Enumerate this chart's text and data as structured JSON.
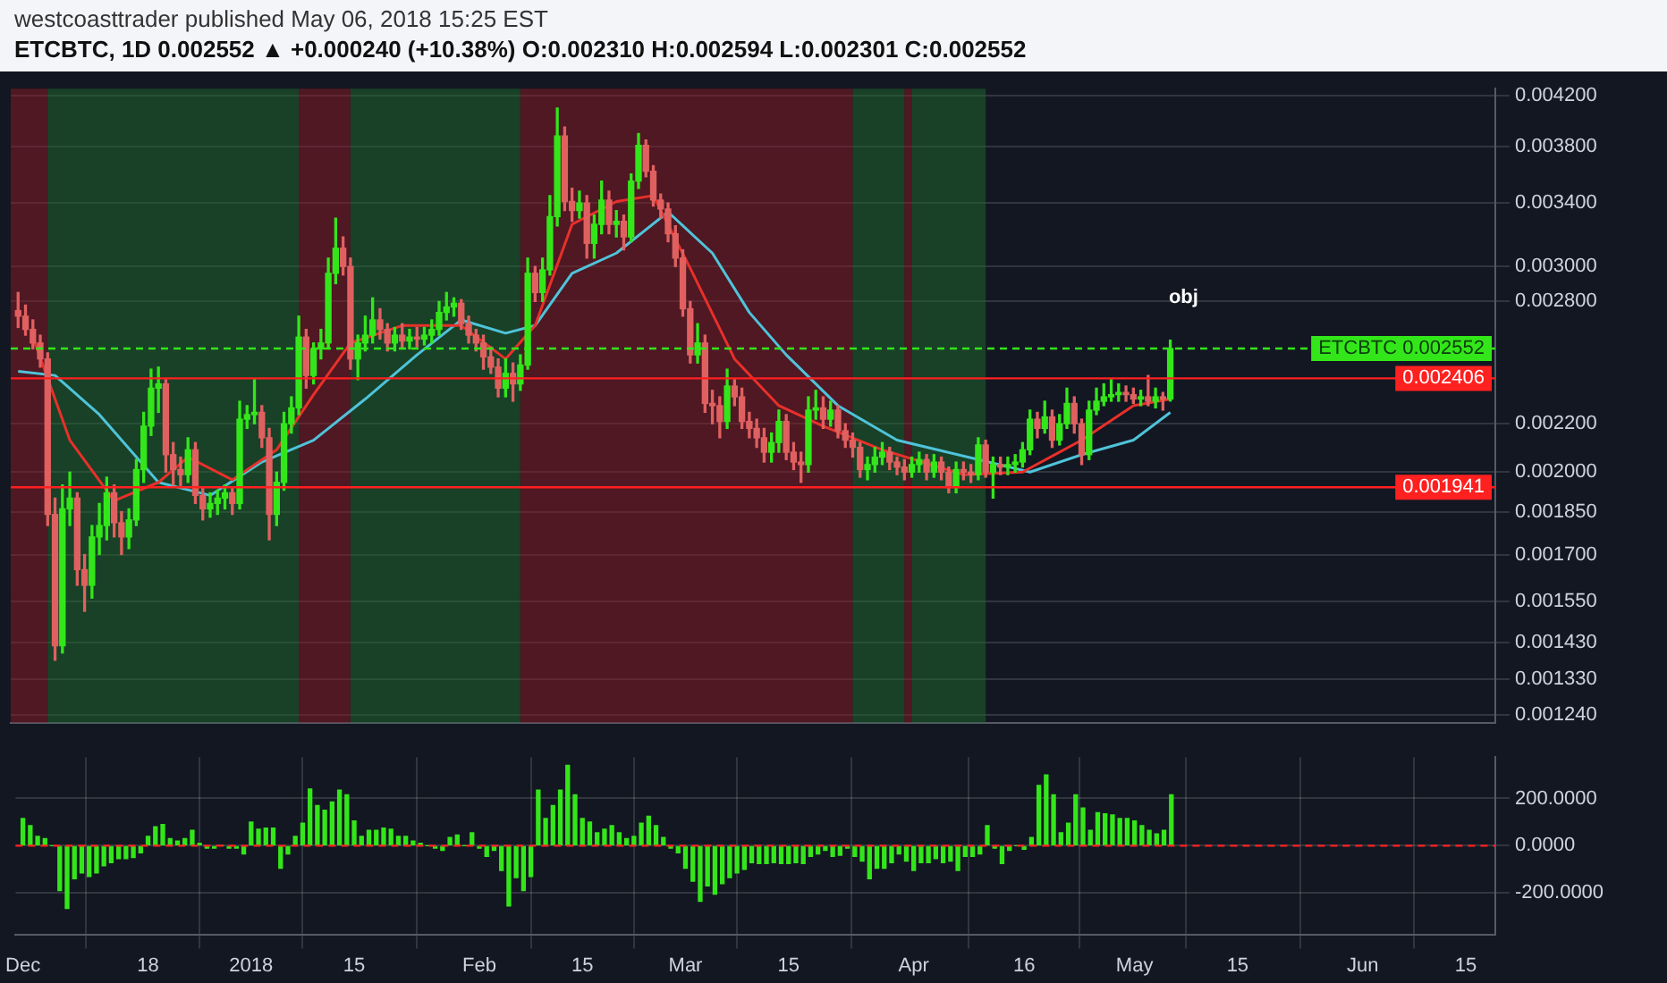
{
  "chart_data": [
    {
      "type": "candlestick",
      "tick_labels": "y",
      "title": "westcoasttrader published May 06, 2018 15:25 EST",
      "subtitle": "ETCBTC, 1D 0.002552 ▲ +0.000240 (+10.38%) O:0.002310 H:0.002594 L:0.002301 C:0.002552",
      "x": [
        "2017-12-01",
        "2017-12-02",
        "2017-12-03",
        "2017-12-04",
        "2017-12-05",
        "2017-12-06",
        "2017-12-07",
        "2017-12-08",
        "2017-12-09",
        "2017-12-10",
        "2017-12-11",
        "2017-12-12",
        "2017-12-13",
        "2017-12-14",
        "2017-12-15",
        "2017-12-16",
        "2017-12-17",
        "2017-12-18",
        "2017-12-19",
        "2017-12-20",
        "2017-12-21",
        "2017-12-22",
        "2017-12-23",
        "2017-12-24",
        "2017-12-25",
        "2017-12-26",
        "2017-12-27",
        "2017-12-28",
        "2017-12-29",
        "2017-12-30",
        "2017-12-31",
        "2018-01-01",
        "2018-01-02",
        "2018-01-03",
        "2018-01-04",
        "2018-01-05",
        "2018-01-06",
        "2018-01-07",
        "2018-01-08",
        "2018-01-09",
        "2018-01-10",
        "2018-01-11",
        "2018-01-12",
        "2018-01-13",
        "2018-01-14",
        "2018-01-15",
        "2018-01-16",
        "2018-01-17",
        "2018-01-18",
        "2018-01-19",
        "2018-01-20",
        "2018-01-21",
        "2018-01-22",
        "2018-01-23",
        "2018-01-24",
        "2018-01-25",
        "2018-01-26",
        "2018-01-27",
        "2018-01-28",
        "2018-01-29",
        "2018-01-30",
        "2018-01-31",
        "2018-02-01",
        "2018-02-02",
        "2018-02-03",
        "2018-02-04",
        "2018-02-05",
        "2018-02-06",
        "2018-02-07",
        "2018-02-08",
        "2018-02-09",
        "2018-02-10",
        "2018-02-11",
        "2018-02-12",
        "2018-02-13",
        "2018-02-14",
        "2018-02-15",
        "2018-02-16",
        "2018-02-17",
        "2018-02-18",
        "2018-02-19",
        "2018-02-20",
        "2018-02-21",
        "2018-02-22",
        "2018-02-23",
        "2018-02-24",
        "2018-02-25",
        "2018-02-26",
        "2018-02-27",
        "2018-02-28",
        "2018-03-01",
        "2018-03-02",
        "2018-03-03",
        "2018-03-04",
        "2018-03-05",
        "2018-03-06",
        "2018-03-07",
        "2018-03-08",
        "2018-03-09",
        "2018-03-10",
        "2018-03-11",
        "2018-03-12",
        "2018-03-13",
        "2018-03-14",
        "2018-03-15",
        "2018-03-16",
        "2018-03-17",
        "2018-03-18",
        "2018-03-19",
        "2018-03-20",
        "2018-03-21",
        "2018-03-22",
        "2018-03-23",
        "2018-03-24",
        "2018-03-25",
        "2018-03-26",
        "2018-03-27",
        "2018-03-28",
        "2018-03-29",
        "2018-03-30",
        "2018-03-31",
        "2018-04-01",
        "2018-04-02",
        "2018-04-03",
        "2018-04-04",
        "2018-04-05",
        "2018-04-06",
        "2018-04-07",
        "2018-04-08",
        "2018-04-09",
        "2018-04-10",
        "2018-04-11",
        "2018-04-12",
        "2018-04-13",
        "2018-04-14",
        "2018-04-15",
        "2018-04-16",
        "2018-04-17",
        "2018-04-18",
        "2018-04-19",
        "2018-04-20",
        "2018-04-21",
        "2018-04-22",
        "2018-04-23",
        "2018-04-24",
        "2018-04-25",
        "2018-04-26",
        "2018-04-27",
        "2018-04-28",
        "2018-04-29",
        "2018-04-30",
        "2018-05-01",
        "2018-05-02",
        "2018-05-03",
        "2018-05-04",
        "2018-05-05",
        "2018-05-06"
      ],
      "ohlc": [
        [
          0.00275,
          0.00285,
          0.00266,
          0.00272
        ],
        [
          0.00272,
          0.00278,
          0.00262,
          0.00265
        ],
        [
          0.00265,
          0.0027,
          0.00255,
          0.00258
        ],
        [
          0.00258,
          0.00262,
          0.00246,
          0.0025
        ],
        [
          0.0025,
          0.00253,
          0.0018,
          0.00184
        ],
        [
          0.00184,
          0.0019,
          0.00138,
          0.00142
        ],
        [
          0.00142,
          0.00195,
          0.0014,
          0.00186
        ],
        [
          0.00186,
          0.002,
          0.0018,
          0.0019
        ],
        [
          0.0019,
          0.00192,
          0.0016,
          0.00165
        ],
        [
          0.00165,
          0.0017,
          0.00152,
          0.0016
        ],
        [
          0.0016,
          0.0018,
          0.00156,
          0.00176
        ],
        [
          0.00176,
          0.00188,
          0.0017,
          0.0018
        ],
        [
          0.0018,
          0.00198,
          0.00175,
          0.00192
        ],
        [
          0.00192,
          0.00195,
          0.00176,
          0.00181
        ],
        [
          0.00181,
          0.00185,
          0.0017,
          0.00176
        ],
        [
          0.00176,
          0.00186,
          0.00172,
          0.00182
        ],
        [
          0.00182,
          0.00205,
          0.0018,
          0.00201
        ],
        [
          0.00201,
          0.00225,
          0.00196,
          0.00219
        ],
        [
          0.00219,
          0.00245,
          0.00215,
          0.00236
        ],
        [
          0.00236,
          0.00246,
          0.00225,
          0.00238
        ],
        [
          0.00238,
          0.0024,
          0.002,
          0.00207
        ],
        [
          0.00207,
          0.00212,
          0.00195,
          0.00201
        ],
        [
          0.00201,
          0.00206,
          0.00194,
          0.00199
        ],
        [
          0.00199,
          0.00214,
          0.00196,
          0.00209
        ],
        [
          0.00209,
          0.00212,
          0.00188,
          0.00191
        ],
        [
          0.00191,
          0.00194,
          0.00182,
          0.00186
        ],
        [
          0.00186,
          0.00192,
          0.00183,
          0.00188
        ],
        [
          0.00188,
          0.00193,
          0.00184,
          0.0019
        ],
        [
          0.0019,
          0.00195,
          0.00186,
          0.00192
        ],
        [
          0.00192,
          0.00194,
          0.00184,
          0.00188
        ],
        [
          0.00188,
          0.0023,
          0.00186,
          0.00222
        ],
        [
          0.00222,
          0.00228,
          0.00218,
          0.00224
        ],
        [
          0.00224,
          0.0024,
          0.0022,
          0.00225
        ],
        [
          0.00225,
          0.00228,
          0.0021,
          0.00214
        ],
        [
          0.00214,
          0.00218,
          0.00175,
          0.00184
        ],
        [
          0.00184,
          0.002,
          0.0018,
          0.00196
        ],
        [
          0.00196,
          0.00225,
          0.00193,
          0.0022
        ],
        [
          0.0022,
          0.00232,
          0.00216,
          0.00227
        ],
        [
          0.00227,
          0.00272,
          0.00224,
          0.00261
        ],
        [
          0.00261,
          0.00265,
          0.00236,
          0.00242
        ],
        [
          0.00242,
          0.00258,
          0.00238,
          0.00255
        ],
        [
          0.00255,
          0.00265,
          0.0025,
          0.00258
        ],
        [
          0.00258,
          0.00305,
          0.00255,
          0.00296
        ],
        [
          0.00296,
          0.0033,
          0.0029,
          0.00311
        ],
        [
          0.00311,
          0.00318,
          0.00295,
          0.003
        ],
        [
          0.003,
          0.00305,
          0.00245,
          0.0025
        ],
        [
          0.0025,
          0.00262,
          0.0024,
          0.00258
        ],
        [
          0.00258,
          0.00272,
          0.00254,
          0.00262
        ],
        [
          0.00262,
          0.00282,
          0.00258,
          0.0027
        ],
        [
          0.0027,
          0.00276,
          0.0026,
          0.00265
        ],
        [
          0.00265,
          0.00268,
          0.00254,
          0.00258
        ],
        [
          0.00258,
          0.00266,
          0.00254,
          0.00262
        ],
        [
          0.00262,
          0.00268,
          0.00255,
          0.00259
        ],
        [
          0.00259,
          0.00265,
          0.00255,
          0.00261
        ],
        [
          0.00261,
          0.00266,
          0.00256,
          0.0026
        ],
        [
          0.0026,
          0.00266,
          0.00257,
          0.00262
        ],
        [
          0.00262,
          0.0027,
          0.00258,
          0.00265
        ],
        [
          0.00265,
          0.0028,
          0.00262,
          0.00274
        ],
        [
          0.00274,
          0.00285,
          0.0027,
          0.00277
        ],
        [
          0.00277,
          0.00282,
          0.00272,
          0.00279
        ],
        [
          0.00279,
          0.00281,
          0.00265,
          0.00268
        ],
        [
          0.00268,
          0.00272,
          0.00258,
          0.00262
        ],
        [
          0.00262,
          0.00265,
          0.00254,
          0.00258
        ],
        [
          0.00258,
          0.00262,
          0.00245,
          0.00251
        ],
        [
          0.00251,
          0.00256,
          0.00243,
          0.00246
        ],
        [
          0.00246,
          0.0025,
          0.00232,
          0.00236
        ],
        [
          0.00236,
          0.0025,
          0.00232,
          0.00243
        ],
        [
          0.00243,
          0.00248,
          0.0023,
          0.00238
        ],
        [
          0.00238,
          0.00252,
          0.00235,
          0.00247
        ],
        [
          0.00247,
          0.00305,
          0.00245,
          0.00296
        ],
        [
          0.00296,
          0.003,
          0.0028,
          0.00285
        ],
        [
          0.00285,
          0.00305,
          0.0028,
          0.00298
        ],
        [
          0.00298,
          0.00345,
          0.00295,
          0.00331
        ],
        [
          0.00331,
          0.0041,
          0.00325,
          0.00388
        ],
        [
          0.00388,
          0.00395,
          0.00335,
          0.00341
        ],
        [
          0.00341,
          0.0035,
          0.00328,
          0.00335
        ],
        [
          0.00335,
          0.00348,
          0.0033,
          0.0034
        ],
        [
          0.0034,
          0.00345,
          0.00305,
          0.00314
        ],
        [
          0.00314,
          0.00332,
          0.00305,
          0.00326
        ],
        [
          0.00326,
          0.00355,
          0.0032,
          0.00342
        ],
        [
          0.00342,
          0.00348,
          0.0032,
          0.00326
        ],
        [
          0.00326,
          0.00335,
          0.00318,
          0.00328
        ],
        [
          0.00328,
          0.00332,
          0.0031,
          0.00318
        ],
        [
          0.00318,
          0.0036,
          0.00315,
          0.00355
        ],
        [
          0.00355,
          0.0039,
          0.0035,
          0.00381
        ],
        [
          0.00381,
          0.00385,
          0.00358,
          0.00362
        ],
        [
          0.00362,
          0.00366,
          0.00338,
          0.00342
        ],
        [
          0.00342,
          0.00346,
          0.0033,
          0.00336
        ],
        [
          0.00336,
          0.0034,
          0.00315,
          0.0032
        ],
        [
          0.0032,
          0.00325,
          0.003,
          0.00305
        ],
        [
          0.00305,
          0.0031,
          0.00272,
          0.00276
        ],
        [
          0.00276,
          0.0028,
          0.00248,
          0.00252
        ],
        [
          0.00252,
          0.00268,
          0.00248,
          0.00258
        ],
        [
          0.00258,
          0.00262,
          0.00225,
          0.00229
        ],
        [
          0.00229,
          0.00235,
          0.0022,
          0.00228
        ],
        [
          0.00228,
          0.00232,
          0.00214,
          0.00221
        ],
        [
          0.00221,
          0.00245,
          0.00218,
          0.00237
        ],
        [
          0.00237,
          0.0024,
          0.00228,
          0.00232
        ],
        [
          0.00232,
          0.00236,
          0.00218,
          0.00221
        ],
        [
          0.00221,
          0.00225,
          0.00214,
          0.00218
        ],
        [
          0.00218,
          0.00222,
          0.0021,
          0.00214
        ],
        [
          0.00214,
          0.00218,
          0.00204,
          0.00208
        ],
        [
          0.00208,
          0.00216,
          0.00204,
          0.00212
        ],
        [
          0.00212,
          0.00226,
          0.00208,
          0.00221
        ],
        [
          0.00221,
          0.00224,
          0.00205,
          0.00208
        ],
        [
          0.00208,
          0.00212,
          0.00201,
          0.00204
        ],
        [
          0.00204,
          0.00208,
          0.00196,
          0.00203
        ],
        [
          0.00203,
          0.00232,
          0.002,
          0.00226
        ],
        [
          0.00226,
          0.00235,
          0.00222,
          0.00227
        ],
        [
          0.00227,
          0.00232,
          0.00218,
          0.00222
        ],
        [
          0.00222,
          0.0023,
          0.00219,
          0.00226
        ],
        [
          0.00226,
          0.00228,
          0.00214,
          0.00217
        ],
        [
          0.00217,
          0.0022,
          0.0021,
          0.00213
        ],
        [
          0.00213,
          0.00216,
          0.00206,
          0.0021
        ],
        [
          0.0021,
          0.00212,
          0.00198,
          0.00201
        ],
        [
          0.00201,
          0.00206,
          0.00197,
          0.00203
        ],
        [
          0.00203,
          0.0021,
          0.002,
          0.00206
        ],
        [
          0.00206,
          0.00212,
          0.00203,
          0.00208
        ],
        [
          0.00208,
          0.0021,
          0.00201,
          0.00204
        ],
        [
          0.00204,
          0.00206,
          0.00199,
          0.00202
        ],
        [
          0.00202,
          0.00205,
          0.00197,
          0.002
        ],
        [
          0.002,
          0.00206,
          0.00198,
          0.00203
        ],
        [
          0.00203,
          0.00208,
          0.002,
          0.00205
        ],
        [
          0.00205,
          0.00207,
          0.00197,
          0.002
        ],
        [
          0.002,
          0.00207,
          0.00198,
          0.00204
        ],
        [
          0.00204,
          0.00206,
          0.00197,
          0.002
        ],
        [
          0.002,
          0.00202,
          0.00192,
          0.00194
        ],
        [
          0.00194,
          0.00204,
          0.00192,
          0.00201
        ],
        [
          0.00201,
          0.00204,
          0.00197,
          0.002
        ],
        [
          0.002,
          0.00203,
          0.00196,
          0.00199
        ],
        [
          0.00199,
          0.00214,
          0.00197,
          0.00211
        ],
        [
          0.00211,
          0.00213,
          0.00198,
          0.002
        ],
        [
          0.002,
          0.00206,
          0.0019,
          0.00203
        ],
        [
          0.00203,
          0.00206,
          0.00199,
          0.00202
        ],
        [
          0.00202,
          0.00206,
          0.00199,
          0.00203
        ],
        [
          0.00203,
          0.00207,
          0.002,
          0.00204
        ],
        [
          0.00204,
          0.00212,
          0.00202,
          0.00209
        ],
        [
          0.00209,
          0.00226,
          0.00207,
          0.00222
        ],
        [
          0.00222,
          0.00225,
          0.00214,
          0.00218
        ],
        [
          0.00218,
          0.0023,
          0.00216,
          0.00223
        ],
        [
          0.00223,
          0.00226,
          0.0021,
          0.00213
        ],
        [
          0.00213,
          0.00224,
          0.00211,
          0.0022
        ],
        [
          0.0022,
          0.00236,
          0.00218,
          0.00229
        ],
        [
          0.00229,
          0.00232,
          0.00216,
          0.0022
        ],
        [
          0.0022,
          0.00222,
          0.00203,
          0.00207
        ],
        [
          0.00207,
          0.0023,
          0.00205,
          0.00226
        ],
        [
          0.00226,
          0.00236,
          0.00224,
          0.0023
        ],
        [
          0.0023,
          0.00238,
          0.00228,
          0.00232
        ],
        [
          0.00232,
          0.0024,
          0.0023,
          0.00233
        ],
        [
          0.00233,
          0.00238,
          0.0023,
          0.00234
        ],
        [
          0.00234,
          0.00237,
          0.0023,
          0.00233
        ],
        [
          0.00233,
          0.00236,
          0.00229,
          0.00231
        ],
        [
          0.00231,
          0.00235,
          0.00228,
          0.00232
        ],
        [
          0.00232,
          0.00242,
          0.00228,
          0.0023
        ],
        [
          0.0023,
          0.00236,
          0.00227,
          0.00232
        ],
        [
          0.00232,
          0.00234,
          0.00226,
          0.00231
        ],
        [
          0.00231,
          0.002594,
          0.002301,
          0.002552
        ]
      ],
      "series": [
        {
          "type": "line",
          "color": "#e8302a",
          "x": [
            "2017-12-03",
            "2017-12-08",
            "2017-12-14",
            "2017-12-20",
            "2017-12-24",
            "2017-12-30",
            "2018-01-05",
            "2018-01-10",
            "2018-01-15",
            "2018-01-22",
            "2018-01-30",
            "2018-02-05",
            "2018-02-09",
            "2018-02-14",
            "2018-02-20",
            "2018-02-25",
            "2018-03-02",
            "2018-03-08",
            "2018-03-14",
            "2018-03-20",
            "2018-03-28",
            "2018-04-08",
            "2018-04-16",
            "2018-04-24",
            "2018-05-01",
            "2018-05-06"
          ],
          "values": [
            0.00261,
            0.00213,
            0.00189,
            0.00196,
            0.00206,
            0.00197,
            0.00209,
            0.00233,
            0.00258,
            0.00267,
            0.00267,
            0.0025,
            0.00267,
            0.00326,
            0.00341,
            0.00345,
            0.00299,
            0.0025,
            0.00228,
            0.00219,
            0.00209,
            0.00199,
            0.002,
            0.00213,
            0.00228,
            0.00231
          ]
        },
        {
          "type": "line",
          "color": "#4fc3d9",
          "x": [
            "2017-12-01",
            "2017-12-06",
            "2017-12-12",
            "2017-12-20",
            "2017-12-27",
            "2018-01-03",
            "2018-01-10",
            "2018-01-17",
            "2018-01-24",
            "2018-01-30",
            "2018-02-05",
            "2018-02-09",
            "2018-02-14",
            "2018-02-20",
            "2018-02-27",
            "2018-03-05",
            "2018-03-10",
            "2018-03-15",
            "2018-03-22",
            "2018-03-30",
            "2018-04-10",
            "2018-04-17",
            "2018-04-24",
            "2018-05-01",
            "2018-05-06"
          ],
          "values": [
            0.00244,
            0.00242,
            0.00224,
            0.00196,
            0.00191,
            0.00204,
            0.00213,
            0.00231,
            0.00252,
            0.0027,
            0.00263,
            0.00267,
            0.00296,
            0.00308,
            0.00334,
            0.00308,
            0.00274,
            0.00252,
            0.00228,
            0.00213,
            0.00205,
            0.002,
            0.00207,
            0.00213,
            0.00225
          ]
        }
      ],
      "xlim": [
        "2017-11-30",
        "2018-06-19"
      ],
      "xticks": [
        {
          "value": "2017-12-01",
          "label": null
        },
        {
          "value": "2017-12-18",
          "label": null
        },
        {
          "value": "2018-01-01",
          "label": null
        },
        {
          "value": "2018-01-15",
          "label": null
        },
        {
          "value": "2018-02-01",
          "label": null
        },
        {
          "value": "2018-02-15",
          "label": null
        },
        {
          "value": "2018-03-01",
          "label": null
        },
        {
          "value": "2018-03-15",
          "label": null
        },
        {
          "value": "2018-04-01",
          "label": null
        },
        {
          "value": "2018-04-16",
          "label": null
        },
        {
          "value": "2018-05-01",
          "label": null
        },
        {
          "value": "2018-05-15",
          "label": null
        },
        {
          "value": "2018-06-01",
          "label": null
        },
        {
          "value": "2018-06-15",
          "label": null
        }
      ],
      "log": true,
      "ylim": [
        0.00122,
        0.00426
      ],
      "yticks": [
        {
          "value": 0.00124,
          "label": "0.001240"
        },
        {
          "value": 0.00133,
          "label": "0.001330"
        },
        {
          "value": 0.00143,
          "label": "0.001430"
        },
        {
          "value": 0.00155,
          "label": "0.001550"
        },
        {
          "value": 0.0017,
          "label": "0.001700"
        },
        {
          "value": 0.00185,
          "label": "0.001850"
        },
        {
          "value": 0.002,
          "label": "0.002000"
        },
        {
          "value": 0.0022,
          "label": "0.002200"
        },
        {
          "value": 0.0028,
          "label": "0.002800"
        },
        {
          "value": 0.003,
          "label": "0.003000"
        },
        {
          "value": 0.0034,
          "label": "0.003400"
        },
        {
          "value": 0.0038,
          "label": "0.003800"
        },
        {
          "value": 0.0042,
          "label": "0.004200"
        }
      ],
      "grid": true,
      "bands": [
        {
          "axis": "x",
          "from": "2017-11-30",
          "to": "2017-12-05",
          "color": "#8c1a24"
        },
        {
          "axis": "x",
          "from": "2017-12-05",
          "to": "2018-01-08",
          "color": "#1d6b2c"
        },
        {
          "axis": "x",
          "from": "2018-01-08",
          "to": "2018-01-15",
          "color": "#8c1a24"
        },
        {
          "axis": "x",
          "from": "2018-01-15",
          "to": "2018-02-07",
          "color": "#1d6b2c"
        },
        {
          "axis": "x",
          "from": "2018-02-07",
          "to": "2018-03-24",
          "color": "#8c1a24"
        },
        {
          "axis": "x",
          "from": "2018-03-24",
          "to": "2018-03-31",
          "color": "#1d6b2c"
        },
        {
          "axis": "x",
          "from": "2018-03-31",
          "to": "2018-04-01",
          "color": "#8c1a24"
        },
        {
          "axis": "x",
          "from": "2018-04-01",
          "to": "2018-04-11",
          "color": "#1d6b2c"
        }
      ],
      "ref_lines": [
        {
          "axis": "y",
          "value": 0.002552,
          "label": "ETCBTC 0.002552",
          "color": "#33e61a",
          "line_style": "dashed"
        },
        {
          "axis": "y",
          "value": 0.002406,
          "label": "0.002406",
          "color": "#ff2020"
        },
        {
          "axis": "y",
          "value": 0.001941,
          "label": "0.001941",
          "color": "#ff2020"
        }
      ],
      "annotations": [
        "obj"
      ]
    },
    {
      "type": "bar",
      "color": "#33e61a",
      "x": [
        "2017-12-01",
        "2017-12-02",
        "2017-12-03",
        "2017-12-04",
        "2017-12-05",
        "2017-12-06",
        "2017-12-07",
        "2017-12-08",
        "2017-12-09",
        "2017-12-10",
        "2017-12-11",
        "2017-12-12",
        "2017-12-13",
        "2017-12-14",
        "2017-12-15",
        "2017-12-16",
        "2017-12-17",
        "2017-12-18",
        "2017-12-19",
        "2017-12-20",
        "2017-12-21",
        "2017-12-22",
        "2017-12-23",
        "2017-12-24",
        "2017-12-25",
        "2017-12-26",
        "2017-12-27",
        "2017-12-28",
        "2017-12-29",
        "2017-12-30",
        "2017-12-31",
        "2018-01-01",
        "2018-01-02",
        "2018-01-03",
        "2018-01-04",
        "2018-01-05",
        "2018-01-06",
        "2018-01-07",
        "2018-01-08",
        "2018-01-09",
        "2018-01-10",
        "2018-01-11",
        "2018-01-12",
        "2018-01-13",
        "2018-01-14",
        "2018-01-15",
        "2018-01-16",
        "2018-01-17",
        "2018-01-18",
        "2018-01-19",
        "2018-01-20",
        "2018-01-21",
        "2018-01-22",
        "2018-01-23",
        "2018-01-24",
        "2018-01-25",
        "2018-01-26",
        "2018-01-27",
        "2018-01-28",
        "2018-01-29",
        "2018-01-30",
        "2018-01-31",
        "2018-02-01",
        "2018-02-02",
        "2018-02-03",
        "2018-02-04",
        "2018-02-05",
        "2018-02-06",
        "2018-02-07",
        "2018-02-08",
        "2018-02-09",
        "2018-02-10",
        "2018-02-11",
        "2018-02-12",
        "2018-02-13",
        "2018-02-14",
        "2018-02-15",
        "2018-02-16",
        "2018-02-17",
        "2018-02-18",
        "2018-02-19",
        "2018-02-20",
        "2018-02-21",
        "2018-02-22",
        "2018-02-23",
        "2018-02-24",
        "2018-02-25",
        "2018-02-26",
        "2018-02-27",
        "2018-02-28",
        "2018-03-01",
        "2018-03-02",
        "2018-03-03",
        "2018-03-04",
        "2018-03-05",
        "2018-03-06",
        "2018-03-07",
        "2018-03-08",
        "2018-03-09",
        "2018-03-10",
        "2018-03-11",
        "2018-03-12",
        "2018-03-13",
        "2018-03-14",
        "2018-03-15",
        "2018-03-16",
        "2018-03-17",
        "2018-03-18",
        "2018-03-19",
        "2018-03-20",
        "2018-03-21",
        "2018-03-22",
        "2018-03-23",
        "2018-03-24",
        "2018-03-25",
        "2018-03-26",
        "2018-03-27",
        "2018-03-28",
        "2018-03-29",
        "2018-03-30",
        "2018-03-31",
        "2018-04-01",
        "2018-04-02",
        "2018-04-03",
        "2018-04-04",
        "2018-04-05",
        "2018-04-06",
        "2018-04-07",
        "2018-04-08",
        "2018-04-09",
        "2018-04-10",
        "2018-04-11",
        "2018-04-12",
        "2018-04-13",
        "2018-04-14",
        "2018-04-15",
        "2018-04-16",
        "2018-04-17",
        "2018-04-18",
        "2018-04-19",
        "2018-04-20",
        "2018-04-21",
        "2018-04-22",
        "2018-04-23",
        "2018-04-24",
        "2018-04-25",
        "2018-04-26",
        "2018-04-27",
        "2018-04-28",
        "2018-04-29",
        "2018-04-30",
        "2018-05-01",
        "2018-05-02",
        "2018-05-03",
        "2018-05-04",
        "2018-05-05",
        "2018-05-06"
      ],
      "values": [
        115,
        85,
        40,
        30,
        0,
        -190,
        -265,
        -140,
        -115,
        -130,
        -115,
        -85,
        -72,
        -55,
        -55,
        -50,
        -30,
        40,
        80,
        90,
        30,
        20,
        30,
        65,
        10,
        -10,
        -10,
        0,
        -10,
        -10,
        -35,
        100,
        70,
        75,
        75,
        -95,
        -35,
        40,
        95,
        240,
        170,
        150,
        185,
        235,
        215,
        105,
        40,
        65,
        65,
        75,
        70,
        40,
        40,
        20,
        10,
        0,
        -10,
        -20,
        35,
        45,
        0,
        55,
        -10,
        -45,
        -20,
        -105,
        -255,
        -135,
        -190,
        -130,
        235,
        115,
        170,
        235,
        340,
        215,
        115,
        100,
        55,
        70,
        85,
        55,
        30,
        40,
        95,
        125,
        85,
        35,
        -10,
        -30,
        -95,
        -150,
        -235,
        -170,
        -205,
        -160,
        -135,
        -115,
        -100,
        -72,
        -75,
        -75,
        -72,
        -75,
        -75,
        -72,
        -75,
        -45,
        -35,
        -20,
        -45,
        -40,
        -10,
        -45,
        -65,
        -140,
        -95,
        -95,
        -72,
        -35,
        -65,
        -105,
        -72,
        -72,
        -55,
        -72,
        -65,
        -105,
        -45,
        -45,
        -35,
        85,
        -10,
        -75,
        -20,
        0,
        -15,
        35,
        255,
        300,
        215,
        55,
        95,
        215,
        160,
        65,
        140,
        135,
        130,
        115,
        115,
        105,
        85,
        65,
        50,
        65,
        215
      ],
      "xlim": [
        "2017-11-30",
        "2018-06-19"
      ],
      "xticks": [
        {
          "value": "2017-12-01",
          "label": "Dec"
        },
        {
          "value": "2017-12-18",
          "label": "18"
        },
        {
          "value": "2018-01-01",
          "label": "2018"
        },
        {
          "value": "2018-01-15",
          "label": "15"
        },
        {
          "value": "2018-02-01",
          "label": "Feb"
        },
        {
          "value": "2018-02-15",
          "label": "15"
        },
        {
          "value": "2018-03-01",
          "label": "Mar"
        },
        {
          "value": "2018-03-15",
          "label": "15"
        },
        {
          "value": "2018-04-01",
          "label": "Apr"
        },
        {
          "value": "2018-04-16",
          "label": "16"
        },
        {
          "value": "2018-05-01",
          "label": "May"
        },
        {
          "value": "2018-05-15",
          "label": "15"
        },
        {
          "value": "2018-06-01",
          "label": "Jun"
        },
        {
          "value": "2018-06-15",
          "label": "15"
        }
      ],
      "ylim": [
        -375,
        375
      ],
      "yticks": [
        {
          "value": -200,
          "label": "-200.0000"
        },
        {
          "value": 0,
          "label": "0.0000"
        },
        {
          "value": 200,
          "label": "200.0000"
        }
      ],
      "grid": true,
      "ref_lines": [
        {
          "axis": "y",
          "value": 0,
          "color": "#ff2020",
          "line_style": "dashed"
        }
      ]
    }
  ]
}
